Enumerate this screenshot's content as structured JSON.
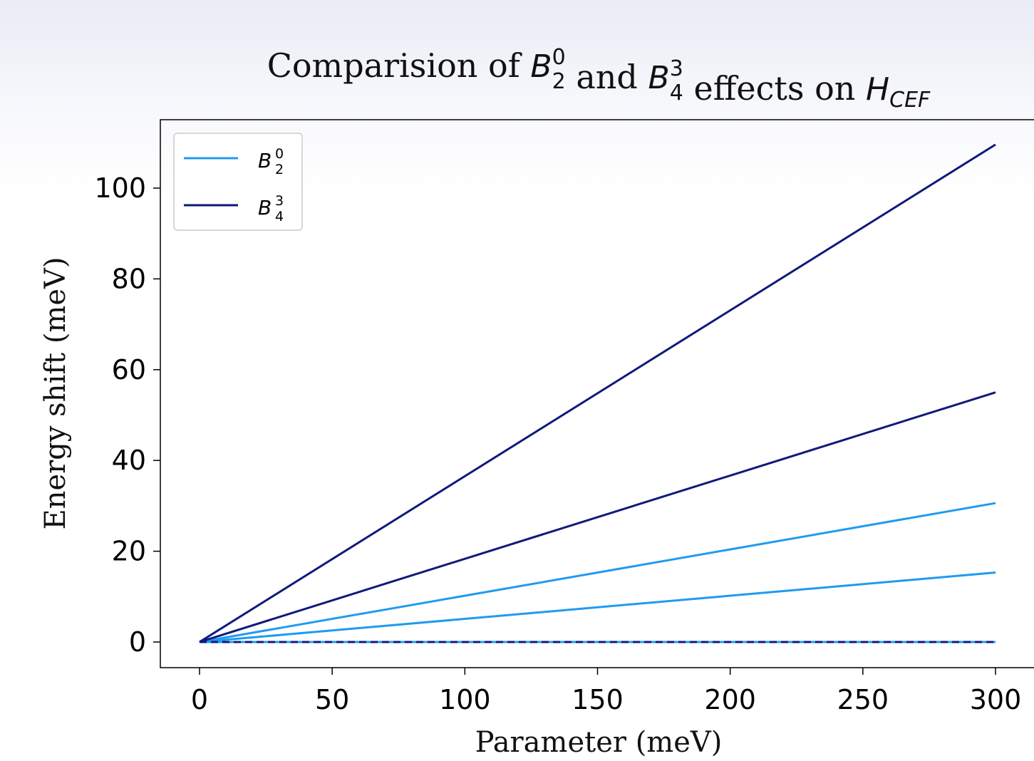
{
  "chart_data": {
    "type": "line",
    "title_parts": [
      {
        "text": "Comparision of ",
        "math": false
      },
      {
        "text": "B",
        "math": true,
        "sup": "0",
        "sub": "2"
      },
      {
        "text": " and ",
        "math": false
      },
      {
        "text": "B",
        "math": true,
        "sup": "3",
        "sub": "4"
      },
      {
        "text": " effects on ",
        "math": false
      },
      {
        "text": "H",
        "math": true,
        "sub": "CEF"
      }
    ],
    "xlabel": "Parameter (meV)",
    "ylabel": "Energy shift (meV)",
    "xlim": [
      -15,
      315
    ],
    "ylim": [
      -5.5,
      115
    ],
    "xticks": [
      0,
      50,
      100,
      150,
      200,
      250,
      300
    ],
    "yticks": [
      0,
      20,
      40,
      60,
      80,
      100
    ],
    "grid": false,
    "legend": {
      "placement": "top-left",
      "entries": [
        {
          "base": "B",
          "sup": "0",
          "sub": "2",
          "color": "#1f9bf0"
        },
        {
          "base": "B",
          "sup": "3",
          "sub": "4",
          "color": "#10197a"
        }
      ]
    },
    "series": [
      {
        "group": 0,
        "color": "#1f9bf0",
        "dashed": false,
        "x": [
          0,
          300
        ],
        "y": [
          0,
          30.6
        ]
      },
      {
        "group": 0,
        "color": "#1f9bf0",
        "dashed": false,
        "x": [
          0,
          300
        ],
        "y": [
          0,
          15.3
        ]
      },
      {
        "group": 0,
        "color": "#1f9bf0",
        "dashed": false,
        "x": [
          0,
          300
        ],
        "y": [
          0,
          0
        ]
      },
      {
        "group": 1,
        "color": "#10197a",
        "dashed": false,
        "x": [
          0,
          300
        ],
        "y": [
          0,
          109.6
        ]
      },
      {
        "group": 1,
        "color": "#10197a",
        "dashed": false,
        "x": [
          0,
          300
        ],
        "y": [
          0,
          55.0
        ]
      },
      {
        "group": 1,
        "color": "#10197a",
        "dashed": true,
        "x": [
          0,
          300
        ],
        "y": [
          0,
          0
        ]
      }
    ]
  }
}
